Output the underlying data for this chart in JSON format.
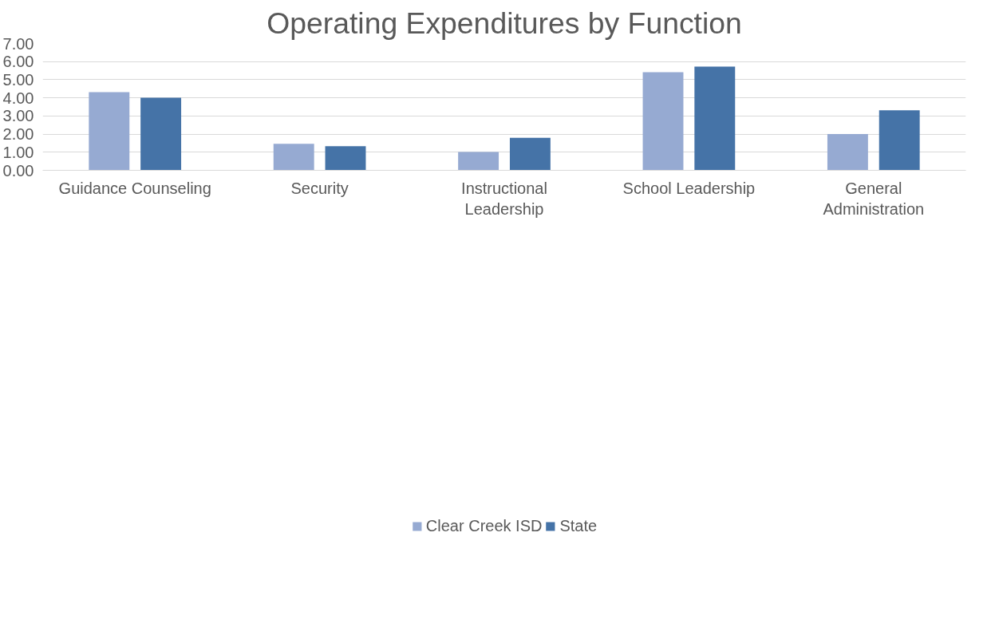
{
  "chart_data": {
    "type": "bar",
    "title": "Operating Expenditures by Function",
    "categories": [
      "Guidance Counseling",
      "Security",
      "Instructional Leadership",
      "School Leadership",
      "General Administration"
    ],
    "series": [
      {
        "name": "Clear Creek ISD",
        "color": "#96aad2",
        "values": [
          4.31,
          1.46,
          1.01,
          5.41,
          2.0
        ]
      },
      {
        "name": "State",
        "color": "#4573a7",
        "values": [
          4.01,
          1.33,
          1.79,
          5.72,
          3.31
        ]
      }
    ],
    "ylim": [
      0,
      7
    ],
    "yticks": [
      {
        "value": 0,
        "label": "0.00"
      },
      {
        "value": 1,
        "label": "1.00"
      },
      {
        "value": 2,
        "label": "2.00"
      },
      {
        "value": 3,
        "label": "3.00"
      },
      {
        "value": 4,
        "label": "4.00"
      },
      {
        "value": 5,
        "label": "5.00"
      },
      {
        "value": 6,
        "label": "6.00"
      },
      {
        "value": 7,
        "label": "7.00"
      }
    ],
    "grid": "y",
    "legend": "bottom"
  }
}
